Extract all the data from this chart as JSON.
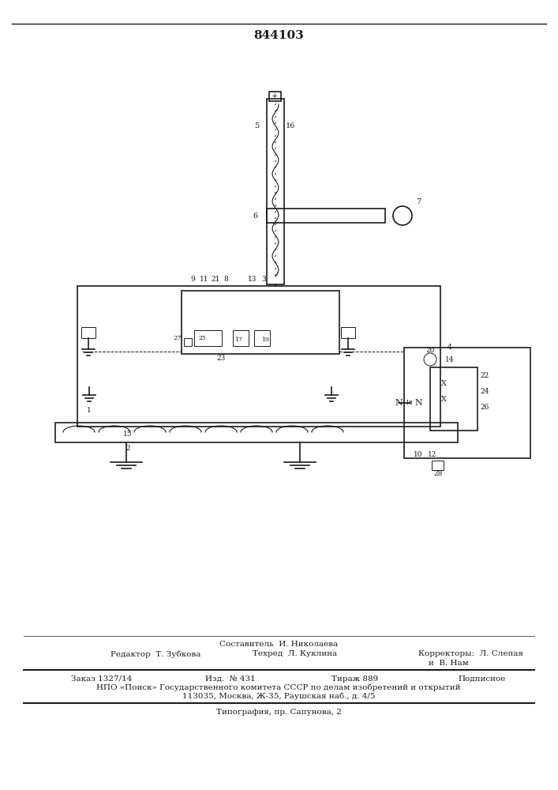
{
  "title": "844103",
  "bg_color": "#ffffff",
  "line_color": "#1a1a1a",
  "footer_sestavitel": "Составитель  И. Николаева",
  "footer_editor": "Редактор  Т. Зубкова",
  "footer_tehred": "Техред  Л. Куклина",
  "footer_korrektory": "Корректоры:  Л. Слепая",
  "footer_i_v_nam": "и  В. Нам",
  "footer_zakaz": "Заказ 1327/14",
  "footer_izd": "Изд.  № 431",
  "footer_tirazh": "Тираж 889",
  "footer_podpisnoe": "Подписное",
  "footer_npo": "НПО «Поиск» Государственного комитета СССР по делам изобретений и открытий",
  "footer_address": "113035, Москва, Ж-35, Раушская наб., д. 4/5",
  "footer_tipografiya": "Типография, пр. Сапунова, 2"
}
